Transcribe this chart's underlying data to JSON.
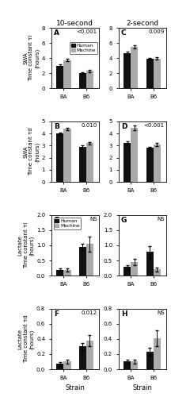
{
  "panels": [
    {
      "label": "A",
      "pvalue": "<0.001",
      "ylim": [
        0,
        8
      ],
      "yticks": [
        0,
        2,
        4,
        6,
        8
      ],
      "BA_human": 3.0,
      "BA_human_err": 0.15,
      "BA_machine": 3.7,
      "BA_machine_err": 0.15,
      "B6_human": 2.0,
      "B6_human_err": 0.12,
      "B6_machine": 2.3,
      "B6_machine_err": 0.15
    },
    {
      "label": "C",
      "pvalue": "0.009",
      "ylim": [
        0,
        8
      ],
      "yticks": [
        0,
        2,
        4,
        6,
        8
      ],
      "BA_human": 4.6,
      "BA_human_err": 0.2,
      "BA_machine": 5.5,
      "BA_machine_err": 0.2,
      "B6_human": 3.9,
      "B6_human_err": 0.15,
      "B6_machine": 3.95,
      "B6_machine_err": 0.15
    },
    {
      "label": "B",
      "pvalue": "0.010",
      "ylim": [
        0,
        5
      ],
      "yticks": [
        0,
        1,
        2,
        3,
        4,
        5
      ],
      "BA_human": 4.0,
      "BA_human_err": 0.1,
      "BA_machine": 4.4,
      "BA_machine_err": 0.1,
      "B6_human": 2.9,
      "B6_human_err": 0.1,
      "B6_machine": 3.2,
      "B6_machine_err": 0.12
    },
    {
      "label": "D",
      "pvalue": "<0.001",
      "ylim": [
        0,
        5
      ],
      "yticks": [
        0,
        1,
        2,
        3,
        4,
        5
      ],
      "BA_human": 3.2,
      "BA_human_err": 0.15,
      "BA_machine": 4.45,
      "BA_machine_err": 0.2,
      "B6_human": 2.8,
      "B6_human_err": 0.1,
      "B6_machine": 3.1,
      "B6_machine_err": 0.12
    },
    {
      "label": "E",
      "pvalue": "NS",
      "ylim": [
        0,
        2.0
      ],
      "yticks": [
        0.0,
        0.5,
        1.0,
        1.5,
        2.0
      ],
      "BA_human": 0.18,
      "BA_human_err": 0.05,
      "BA_machine": 0.18,
      "BA_machine_err": 0.05,
      "B6_human": 0.95,
      "B6_human_err": 0.1,
      "B6_machine": 1.05,
      "B6_machine_err": 0.25
    },
    {
      "label": "G",
      "pvalue": "NS",
      "ylim": [
        0,
        2.0
      ],
      "yticks": [
        0.0,
        0.5,
        1.0,
        1.5,
        2.0
      ],
      "BA_human": 0.28,
      "BA_human_err": 0.07,
      "BA_machine": 0.45,
      "BA_machine_err": 0.1,
      "B6_human": 0.78,
      "B6_human_err": 0.2,
      "B6_machine": 0.2,
      "B6_machine_err": 0.07
    },
    {
      "label": "F",
      "pvalue": "0.012",
      "ylim": [
        0,
        0.8
      ],
      "yticks": [
        0.0,
        0.2,
        0.4,
        0.6,
        0.8
      ],
      "BA_human": 0.07,
      "BA_human_err": 0.02,
      "BA_machine": 0.1,
      "BA_machine_err": 0.025,
      "B6_human": 0.3,
      "B6_human_err": 0.05,
      "B6_machine": 0.38,
      "B6_machine_err": 0.07
    },
    {
      "label": "H",
      "pvalue": "NS",
      "ylim": [
        0,
        0.8
      ],
      "yticks": [
        0.0,
        0.2,
        0.4,
        0.6,
        0.8
      ],
      "BA_human": 0.1,
      "BA_human_err": 0.03,
      "BA_machine": 0.1,
      "BA_machine_err": 0.03,
      "B6_human": 0.23,
      "B6_human_err": 0.05,
      "B6_machine": 0.41,
      "B6_machine_err": 0.1
    }
  ],
  "col_titles": [
    "10-second",
    "2-second"
  ],
  "row_ylabels": [
    "SWA\nTime constant τi\n(hours)",
    "SWA\nTime constant τd\n(hours)",
    "Lactate\nTime constant τi\n(hours)",
    "Lactate\nTime constant τd\n(hours)"
  ],
  "human_color": "#111111",
  "machine_color": "#aaaaaa",
  "bar_width": 0.32,
  "x_labels": [
    "BA",
    "B6"
  ],
  "x_strain_label": "Strain"
}
